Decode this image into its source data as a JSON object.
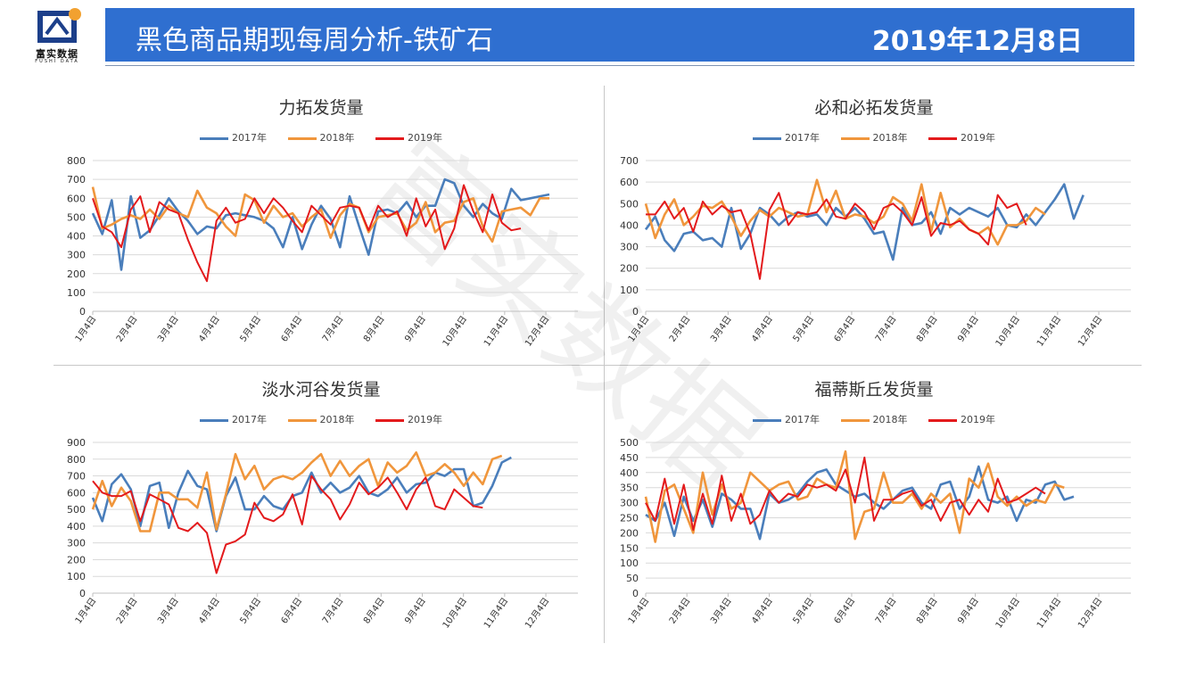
{
  "header": {
    "title": "黑色商品期现每周分析-铁矿石",
    "date": "2019年12月8日"
  },
  "logo": {
    "brand": "富实数据",
    "sub": "FUSHI DATA"
  },
  "watermark": "富实数据",
  "colors": {
    "header_bg": "#2f6fd0",
    "s2017": "#4a7ebb",
    "s2018": "#f0963c",
    "s2019": "#e31a1c"
  },
  "months": [
    "1月4日",
    "2月4日",
    "3月4日",
    "4月4日",
    "5月4日",
    "6月4日",
    "7月4日",
    "8月4日",
    "9月4日",
    "10月4日",
    "11月4日",
    "12月4日"
  ],
  "chart_data": [
    {
      "type": "line",
      "title": "力拓发货量",
      "ylim": [
        0,
        800
      ],
      "yticks": [
        0,
        100,
        200,
        300,
        400,
        500,
        600,
        700,
        800
      ],
      "legend_position": "top",
      "series": [
        {
          "name": "2017年",
          "values": [
            520,
            410,
            590,
            220,
            610,
            390,
            430,
            510,
            600,
            530,
            480,
            410,
            450,
            440,
            510,
            520,
            510,
            500,
            480,
            440,
            340,
            500,
            330,
            460,
            560,
            490,
            340,
            610,
            450,
            300,
            530,
            540,
            520,
            580,
            500,
            560,
            560,
            700,
            680,
            560,
            500,
            570,
            520,
            490,
            650,
            590,
            600,
            610,
            620
          ]
        },
        {
          "name": "2018年",
          "values": [
            660,
            440,
            460,
            490,
            510,
            490,
            540,
            490,
            560,
            520,
            500,
            640,
            550,
            520,
            450,
            400,
            620,
            590,
            470,
            560,
            500,
            520,
            450,
            500,
            540,
            390,
            510,
            570,
            550,
            420,
            500,
            510,
            520,
            430,
            470,
            580,
            420,
            470,
            480,
            580,
            600,
            450,
            370,
            530,
            540,
            550,
            510,
            600,
            600
          ]
        },
        {
          "name": "2019年",
          "values": [
            600,
            450,
            420,
            340,
            540,
            610,
            420,
            580,
            540,
            520,
            380,
            260,
            160,
            480,
            550,
            470,
            490,
            600,
            520,
            600,
            550,
            480,
            420,
            560,
            510,
            460,
            550,
            560,
            550,
            430,
            560,
            500,
            530,
            400,
            600,
            450,
            540,
            330,
            440,
            670,
            530,
            420,
            620,
            470,
            430,
            440
          ]
        }
      ]
    },
    {
      "type": "line",
      "title": "必和必拓发货量",
      "ylim": [
        0,
        700
      ],
      "yticks": [
        0,
        100,
        200,
        300,
        400,
        500,
        600,
        700
      ],
      "legend_position": "top",
      "series": [
        {
          "name": "2017年",
          "values": [
            380,
            440,
            330,
            280,
            360,
            370,
            330,
            340,
            300,
            480,
            290,
            360,
            480,
            450,
            400,
            440,
            460,
            440,
            450,
            400,
            480,
            440,
            480,
            430,
            360,
            370,
            240,
            480,
            400,
            410,
            460,
            360,
            480,
            450,
            480,
            460,
            440,
            480,
            400,
            390,
            450,
            400,
            460,
            520,
            590,
            430,
            540
          ]
        },
        {
          "name": "2018年",
          "values": [
            500,
            340,
            450,
            520,
            400,
            440,
            490,
            480,
            510,
            440,
            350,
            420,
            470,
            440,
            480,
            460,
            440,
            450,
            610,
            460,
            560,
            430,
            450,
            440,
            410,
            440,
            530,
            500,
            420,
            590,
            370,
            550,
            390,
            430,
            380,
            360,
            390,
            310,
            400,
            400,
            420,
            480,
            450
          ]
        },
        {
          "name": "2019年",
          "values": [
            450,
            450,
            510,
            430,
            480,
            370,
            510,
            450,
            490,
            460,
            470,
            360,
            150,
            470,
            550,
            400,
            460,
            450,
            460,
            520,
            440,
            430,
            500,
            460,
            380,
            480,
            500,
            460,
            400,
            530,
            350,
            410,
            400,
            420,
            380,
            360,
            310,
            540,
            480,
            500,
            400
          ]
        }
      ]
    },
    {
      "type": "line",
      "title": "淡水河谷发货量",
      "ylim": [
        0,
        900
      ],
      "yticks": [
        0,
        100,
        200,
        300,
        400,
        500,
        600,
        700,
        800,
        900
      ],
      "legend_position": "top",
      "series": [
        {
          "name": "2017年",
          "values": [
            570,
            430,
            650,
            710,
            620,
            400,
            640,
            660,
            390,
            600,
            730,
            640,
            620,
            370,
            580,
            690,
            500,
            500,
            580,
            520,
            500,
            580,
            600,
            720,
            600,
            660,
            600,
            630,
            700,
            600,
            580,
            620,
            690,
            600,
            650,
            660,
            720,
            700,
            740,
            740,
            520,
            540,
            640,
            780,
            810
          ]
        },
        {
          "name": "2018年",
          "values": [
            500,
            670,
            520,
            630,
            550,
            370,
            370,
            600,
            600,
            560,
            560,
            510,
            720,
            380,
            590,
            830,
            680,
            760,
            620,
            680,
            700,
            680,
            720,
            780,
            830,
            700,
            790,
            700,
            760,
            800,
            640,
            780,
            720,
            760,
            840,
            700,
            720,
            770,
            720,
            640,
            720,
            650,
            800,
            820
          ]
        },
        {
          "name": "2019年",
          "values": [
            670,
            600,
            580,
            580,
            610,
            430,
            590,
            560,
            530,
            390,
            370,
            420,
            360,
            120,
            290,
            310,
            350,
            540,
            450,
            430,
            470,
            590,
            410,
            700,
            620,
            560,
            440,
            530,
            660,
            590,
            630,
            690,
            600,
            500,
            620,
            690,
            520,
            500,
            620,
            570,
            520,
            510
          ]
        }
      ]
    },
    {
      "type": "line",
      "title": "福蒂斯丘发货量",
      "ylim": [
        0,
        500
      ],
      "yticks": [
        0,
        50,
        100,
        150,
        200,
        250,
        300,
        350,
        400,
        450,
        500
      ],
      "legend_position": "top",
      "series": [
        {
          "name": "2017年",
          "values": [
            260,
            240,
            300,
            190,
            320,
            240,
            310,
            220,
            330,
            310,
            280,
            280,
            180,
            330,
            300,
            310,
            330,
            370,
            400,
            410,
            360,
            340,
            320,
            330,
            300,
            280,
            310,
            340,
            350,
            300,
            280,
            360,
            370,
            280,
            320,
            420,
            310,
            300,
            320,
            240,
            310,
            300,
            360,
            370,
            310,
            320
          ]
        },
        {
          "name": "2018年",
          "values": [
            320,
            170,
            340,
            360,
            280,
            200,
            400,
            260,
            360,
            280,
            300,
            400,
            370,
            340,
            360,
            370,
            310,
            320,
            380,
            360,
            350,
            470,
            180,
            270,
            280,
            400,
            300,
            300,
            330,
            280,
            330,
            300,
            330,
            200,
            380,
            350,
            430,
            320,
            290,
            320,
            290,
            310,
            300,
            360,
            350
          ]
        },
        {
          "name": "2019年",
          "values": [
            300,
            240,
            380,
            230,
            360,
            210,
            330,
            230,
            390,
            240,
            330,
            230,
            260,
            340,
            300,
            330,
            320,
            360,
            350,
            360,
            340,
            410,
            300,
            450,
            240,
            310,
            310,
            330,
            340,
            290,
            310,
            240,
            300,
            310,
            260,
            310,
            270,
            380,
            300,
            310,
            330,
            350,
            330
          ]
        }
      ]
    }
  ]
}
